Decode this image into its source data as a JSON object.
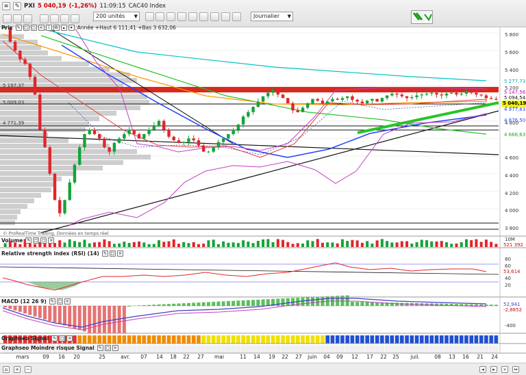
{
  "toolbar": {
    "symbol": "PXI",
    "price": "5 040,19",
    "change": "(-1,26%)",
    "time": "11:09:15",
    "index_name": "CAC40 Index",
    "units": "200 unités",
    "period": "Journalier"
  },
  "price_panel": {
    "title": "Prix",
    "info": "Année +Haut 6 111,41 +Bas 3 632,06",
    "axis": [
      "5 800",
      "5 600",
      "5 400",
      "5 200",
      "5 000",
      "4 800",
      "4 600",
      "4 400",
      "4 200",
      "4 000",
      "3 800"
    ],
    "left_levels": [
      "5 197,37",
      "5 009,03",
      "4 771,39"
    ],
    "right_tags": [
      {
        "value": "5 277,73",
        "color": "#00c3c3"
      },
      {
        "value": "5 147,56",
        "color": "#d400d4"
      },
      {
        "value": "5 094,54",
        "color": "#111111"
      },
      {
        "value": "5 040,19",
        "color": "#f0f000"
      },
      {
        "value": "4 977,83",
        "color": "#2040ff"
      },
      {
        "value": "4 876,50",
        "color": "#2040ff"
      },
      {
        "value": "4 666,63",
        "color": "#27c427"
      }
    ],
    "copyright": "© ProRealTime Trading. Données en temps réel"
  },
  "volume_panel": {
    "title": "Volume",
    "axis": [
      "10M"
    ],
    "value": "521 392"
  },
  "rsi_panel": {
    "title": "Relative strength index (RSI) (14)",
    "axis": [
      "80",
      "60",
      "40",
      "20"
    ],
    "value": "53,614"
  },
  "macd_panel": {
    "title": "MACD (12 26 9)",
    "axis": [
      "-400"
    ],
    "values": [
      "52,941",
      "-2,8852"
    ]
  },
  "signal_panel": {
    "title": "Graphseo Signal"
  },
  "risk_panel": {
    "title": "Graphseo Moindre risque Signal"
  },
  "date_axis": [
    "mars",
    "09",
    "16",
    "20",
    "25",
    "avr.",
    "07",
    "14",
    "18",
    "22",
    "27",
    "mai",
    "11",
    "14",
    "19",
    "22",
    "27",
    "juin",
    "04",
    "09",
    "12",
    "17",
    "22",
    "25",
    "juil.",
    "08",
    "13",
    "16",
    "21",
    "24"
  ],
  "colors": {
    "up": "#17a23a",
    "down": "#e0262b",
    "resistance": "#d9281e"
  }
}
